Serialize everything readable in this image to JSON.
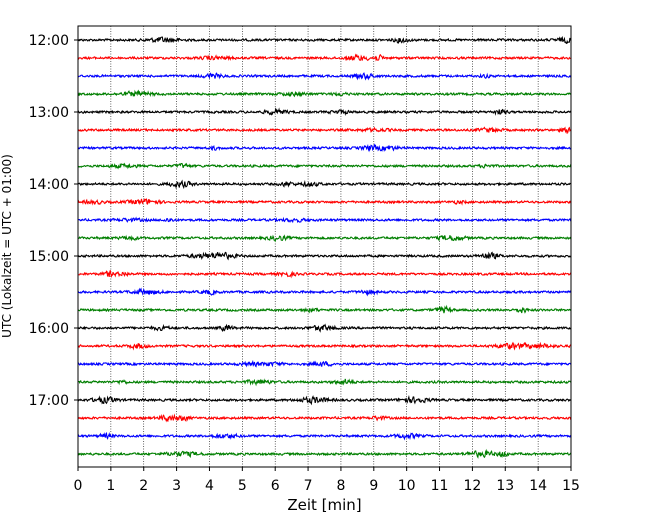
{
  "chart_data": {
    "type": "line",
    "title": "",
    "xlabel": "Zeit  [min]",
    "ylabel": "UTC (Lokalzeit = UTC + 01:00)",
    "xlim": [
      0,
      15
    ],
    "x_ticks": [
      "0",
      "1",
      "2",
      "3",
      "4",
      "5",
      "6",
      "7",
      "8",
      "9",
      "10",
      "11",
      "12",
      "13",
      "14",
      "15"
    ],
    "y_tick_labels": [
      "12:00",
      "13:00",
      "14:00",
      "15:00",
      "16:00",
      "17:00"
    ],
    "grid": "vertical-dotted",
    "trace_interval_minutes": 15,
    "trace_start": "12:00",
    "trace_count": 24,
    "trace_colors": [
      "#000000",
      "#ff0000",
      "#0000ff",
      "#007f00"
    ]
  }
}
